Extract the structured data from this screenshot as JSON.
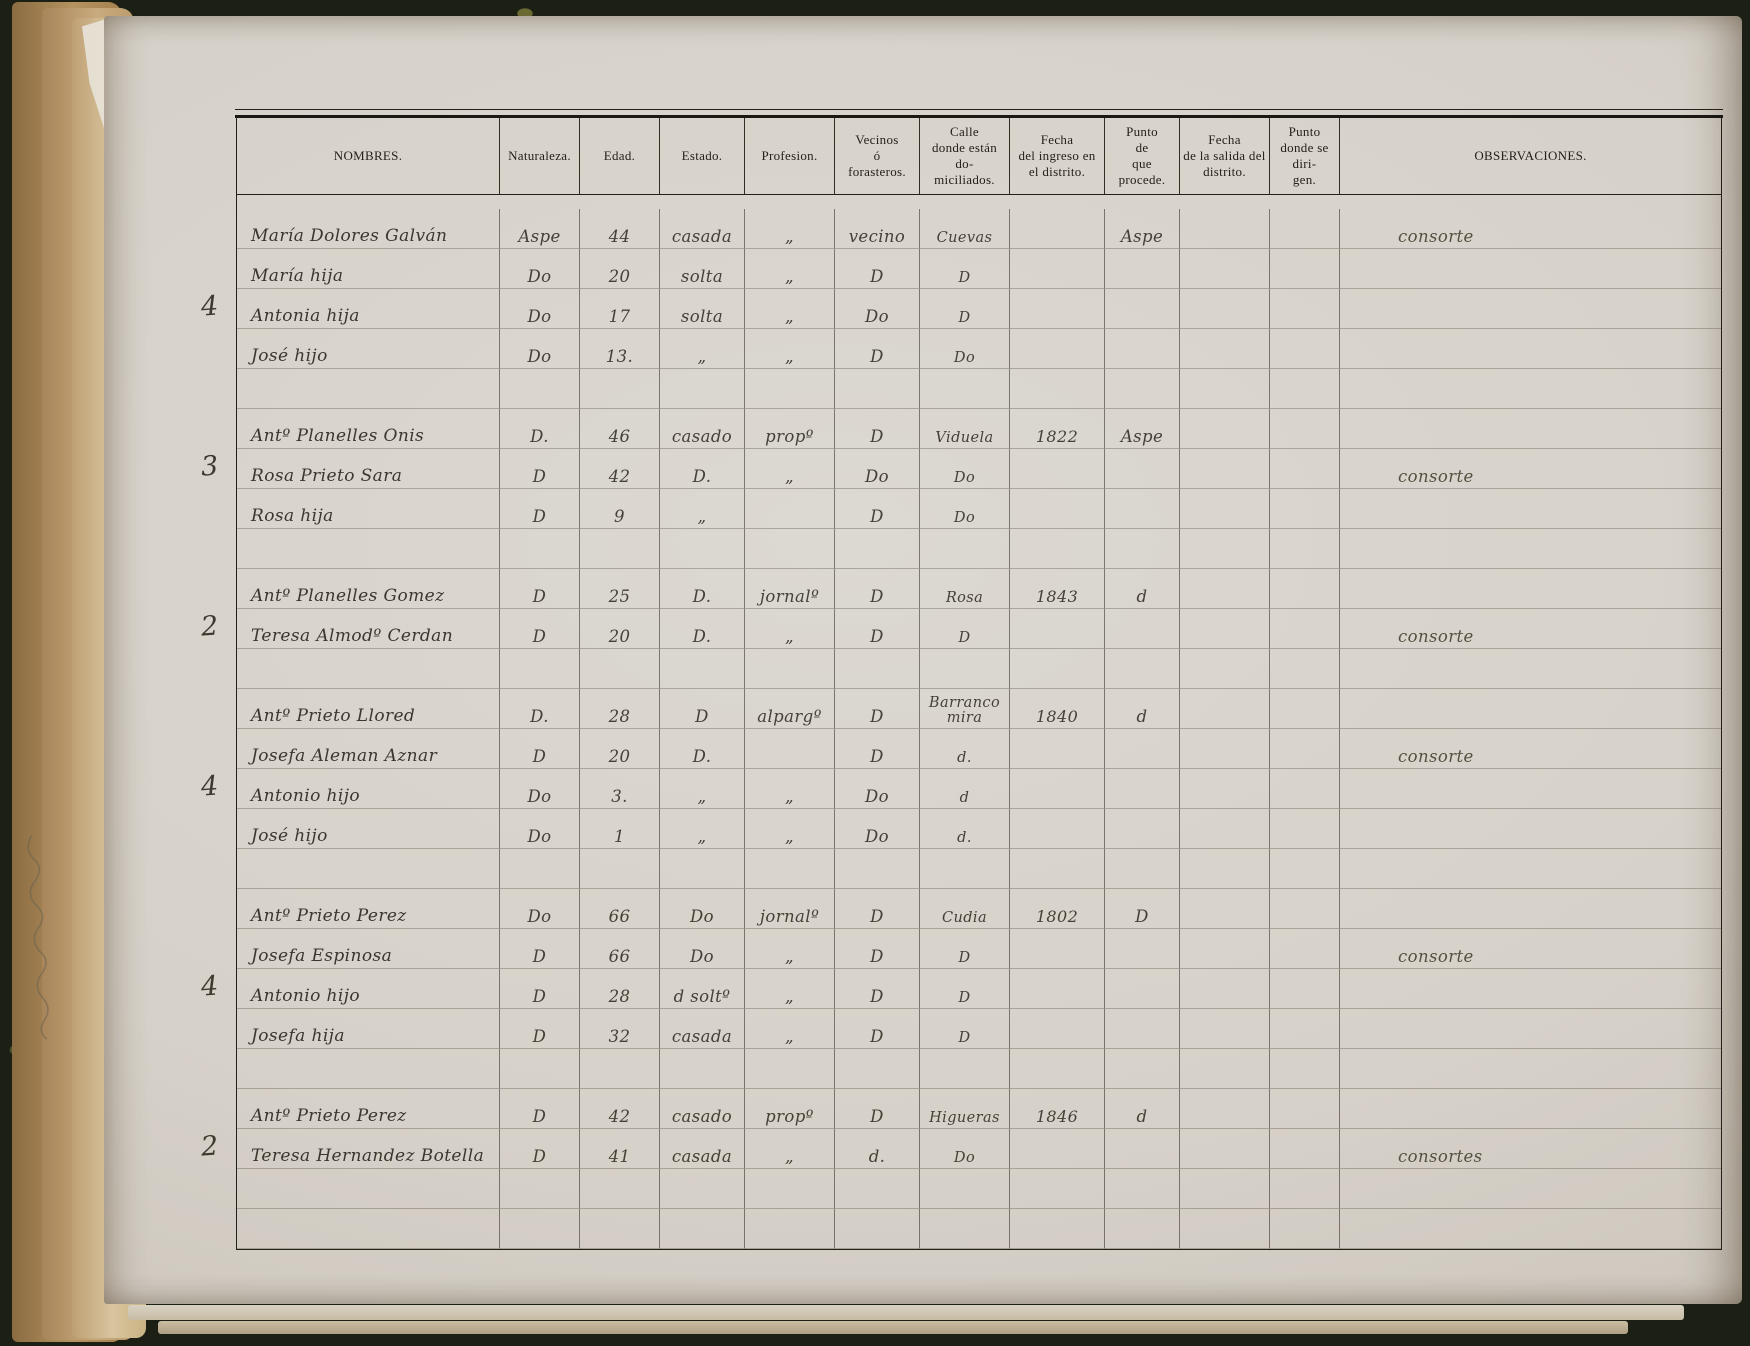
{
  "document": {
    "kind": "scanned handwritten population register page",
    "ink_color": "#46413a",
    "paper_color": "#d6d1c9",
    "cover_color": "#23251a"
  },
  "table": {
    "headers": [
      {
        "key": "nombres",
        "label": "NOMBRES."
      },
      {
        "key": "naturaleza",
        "label": "Naturaleza."
      },
      {
        "key": "edad",
        "label": "Edad."
      },
      {
        "key": "estado",
        "label": "Estado."
      },
      {
        "key": "profesion",
        "label": "Profesion."
      },
      {
        "key": "vecinos",
        "label": "Vecinos\nó\nforasteros."
      },
      {
        "key": "calle",
        "label": "Calle\ndonde están do-\nmiciliados."
      },
      {
        "key": "fecha-ingreso",
        "label": "Fecha\ndel ingreso en\nel distrito."
      },
      {
        "key": "punto-procede",
        "label": "Punto\nde\nque procede."
      },
      {
        "key": "fecha-salida",
        "label": "Fecha\nde la salida del\ndistrito."
      },
      {
        "key": "punto-dirigen",
        "label": "Punto\ndonde se diri-\ngen."
      },
      {
        "key": "observaciones",
        "label": "OBSERVACIONES."
      }
    ],
    "rows": [
      {
        "margin": "",
        "cells": [
          "María Dolores Galván",
          "Aspe",
          "44",
          "casada",
          "„",
          "vecino",
          "Cuevas",
          "",
          "Aspe",
          "",
          "",
          "consorte"
        ]
      },
      {
        "margin": "",
        "cells": [
          "María hija",
          "Do",
          "20",
          "solta",
          "„",
          "D",
          "D",
          "",
          "",
          "",
          "",
          ""
        ]
      },
      {
        "margin": "4",
        "cells": [
          "Antonia hija",
          "Do",
          "17",
          "solta",
          "„",
          "Do",
          "D",
          "",
          "",
          "",
          "",
          ""
        ]
      },
      {
        "margin": "",
        "cells": [
          "José hijo",
          "Do",
          "13.",
          "„",
          "„",
          "D",
          "Do",
          "",
          "",
          "",
          "",
          ""
        ]
      },
      {
        "margin": "",
        "cells": [
          "",
          "",
          "",
          "",
          "",
          "",
          "",
          "",
          "",
          "",
          "",
          ""
        ]
      },
      {
        "margin": "",
        "cells": [
          "Antº Planelles Onis",
          "D.",
          "46",
          "casado",
          "propº",
          "D",
          "Viduela",
          "1822",
          "Aspe",
          "",
          "",
          ""
        ]
      },
      {
        "margin": "3",
        "cells": [
          "Rosa Prieto Sara",
          "D",
          "42",
          "D.",
          "„",
          "Do",
          "Do",
          "",
          "",
          "",
          "",
          "consorte"
        ]
      },
      {
        "margin": "",
        "cells": [
          "Rosa hija",
          "D",
          "9",
          "„",
          "",
          "D",
          "Do",
          "",
          "",
          "",
          "",
          ""
        ]
      },
      {
        "margin": "",
        "cells": [
          "",
          "",
          "",
          "",
          "",
          "",
          "",
          "",
          "",
          "",
          "",
          ""
        ]
      },
      {
        "margin": "",
        "cells": [
          "Antº Planelles Gomez",
          "D",
          "25",
          "D.",
          "jornalº",
          "D",
          "Rosa",
          "1843",
          "d",
          "",
          "",
          ""
        ]
      },
      {
        "margin": "2",
        "cells": [
          "Teresa Almodº Cerdan",
          "D",
          "20",
          "D.",
          "„",
          "D",
          "D",
          "",
          "",
          "",
          "",
          "consorte"
        ]
      },
      {
        "margin": "",
        "cells": [
          "",
          "",
          "",
          "",
          "",
          "",
          "",
          "",
          "",
          "",
          "",
          ""
        ]
      },
      {
        "margin": "",
        "cells": [
          "Antº Prieto Llored",
          "D.",
          "28",
          "D",
          "alpargº",
          "D",
          "Barranco\nmira",
          "1840",
          "d",
          "",
          "",
          ""
        ]
      },
      {
        "margin": "",
        "cells": [
          "Josefa Aleman Aznar",
          "D",
          "20",
          "D.",
          "",
          "D",
          "d.",
          "",
          "",
          "",
          "",
          "consorte"
        ]
      },
      {
        "margin": "4",
        "cells": [
          "Antonio hijo",
          "Do",
          "3.",
          "„",
          "„",
          "Do",
          "d",
          "",
          "",
          "",
          "",
          ""
        ]
      },
      {
        "margin": "",
        "cells": [
          "José hijo",
          "Do",
          "1",
          "„",
          "„",
          "Do",
          "d.",
          "",
          "",
          "",
          "",
          ""
        ]
      },
      {
        "margin": "",
        "cells": [
          "",
          "",
          "",
          "",
          "",
          "",
          "",
          "",
          "",
          "",
          "",
          ""
        ]
      },
      {
        "margin": "",
        "cells": [
          "Antº Prieto Perez",
          "Do",
          "66",
          "Do",
          "jornalº",
          "D",
          "Cudia",
          "1802",
          "D",
          "",
          "",
          ""
        ]
      },
      {
        "margin": "",
        "cells": [
          "Josefa Espinosa",
          "D",
          "66",
          "Do",
          "„",
          "D",
          "D",
          "",
          "",
          "",
          "",
          "consorte"
        ]
      },
      {
        "margin": "4",
        "cells": [
          "Antonio hijo",
          "D",
          "28",
          "d soltº",
          "„",
          "D",
          "D",
          "",
          "",
          "",
          "",
          ""
        ]
      },
      {
        "margin": "",
        "cells": [
          "Josefa hija",
          "D",
          "32",
          "casada",
          "„",
          "D",
          "D",
          "",
          "",
          "",
          "",
          ""
        ]
      },
      {
        "margin": "",
        "cells": [
          "",
          "",
          "",
          "",
          "",
          "",
          "",
          "",
          "",
          "",
          "",
          ""
        ]
      },
      {
        "margin": "",
        "cells": [
          "Antº Prieto Perez",
          "D",
          "42",
          "casado",
          "propº",
          "D",
          "Higueras",
          "1846",
          "d",
          "",
          "",
          ""
        ]
      },
      {
        "margin": "2",
        "cells": [
          "Teresa Hernandez Botella",
          "D",
          "41",
          "casada",
          "„",
          "d.",
          "Do",
          "",
          "",
          "",
          "",
          "consortes"
        ]
      },
      {
        "margin": "",
        "cells": [
          "",
          "",
          "",
          "",
          "",
          "",
          "",
          "",
          "",
          "",
          "",
          ""
        ]
      },
      {
        "margin": "",
        "cells": [
          "",
          "",
          "",
          "",
          "",
          "",
          "",
          "",
          "",
          "",
          "",
          ""
        ]
      }
    ]
  }
}
